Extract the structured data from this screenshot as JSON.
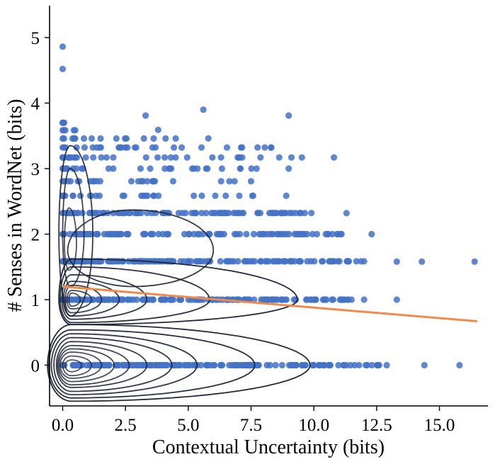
{
  "chart_data": {
    "type": "scatter",
    "title": "",
    "xlabel": "Contextual Uncertainty (bits)",
    "ylabel": "# Senses in WordNet (bits)",
    "xlim": [
      -0.5,
      16.9
    ],
    "ylim": [
      -0.62,
      5.5
    ],
    "x_ticks": [
      "0.0",
      "2.5",
      "5.0",
      "7.5",
      "10.0",
      "12.5",
      "15.0"
    ],
    "y_ticks": [
      "0",
      "1",
      "2",
      "3",
      "4",
      "5"
    ],
    "grid": false,
    "colors": {
      "points": "#4472c4",
      "regression": "#ee8a4b",
      "kde": "#1f2535"
    },
    "series": [
      {
        "kind": "scatter_rows",
        "rows": [
          {
            "y": 0,
            "x_max": 12.6
          },
          {
            "y": 1,
            "x_max": 11.5
          },
          {
            "y": 1.585,
            "x_max": 12.0
          },
          {
            "y": 2,
            "x_max": 11.1
          },
          {
            "y": 2.322,
            "x_max": 9.9
          },
          {
            "y": 2.585,
            "x_max": 8.9
          },
          {
            "y": 2.807,
            "x_max": 7.5
          },
          {
            "y": 3,
            "x_max": 9.0
          },
          {
            "y": 3.17,
            "x_max": 10.8
          },
          {
            "y": 3.322,
            "x_max": 8.3
          },
          {
            "y": 3.459,
            "x_max": 4.5
          },
          {
            "y": 3.585,
            "x_max": 0.5
          },
          {
            "y": 3.7,
            "x_max": 0.05
          }
        ],
        "extra_points": [
          {
            "x": 0.0,
            "y": 4.86
          },
          {
            "x": 0.0,
            "y": 4.52
          },
          {
            "x": 3.3,
            "y": 3.81
          },
          {
            "x": 5.6,
            "y": 3.9
          },
          {
            "x": 9.0,
            "y": 3.81
          },
          {
            "x": 3.8,
            "y": 3.59
          },
          {
            "x": 5.8,
            "y": 3.46
          },
          {
            "x": 8.3,
            "y": 3.32
          },
          {
            "x": 12.9,
            "y": 0.0
          },
          {
            "x": 14.4,
            "y": 0.0
          },
          {
            "x": 15.8,
            "y": 0.0
          },
          {
            "x": 12.3,
            "y": 2.0
          },
          {
            "x": 11.3,
            "y": 2.32
          },
          {
            "x": 13.3,
            "y": 1.58
          },
          {
            "x": 14.3,
            "y": 1.58
          },
          {
            "x": 16.4,
            "y": 1.58
          },
          {
            "x": 12.0,
            "y": 1.0
          },
          {
            "x": 13.3,
            "y": 1.0
          }
        ]
      },
      {
        "kind": "regression",
        "points": [
          [
            0.0,
            1.2
          ],
          [
            16.5,
            0.67
          ]
        ]
      }
    ]
  }
}
